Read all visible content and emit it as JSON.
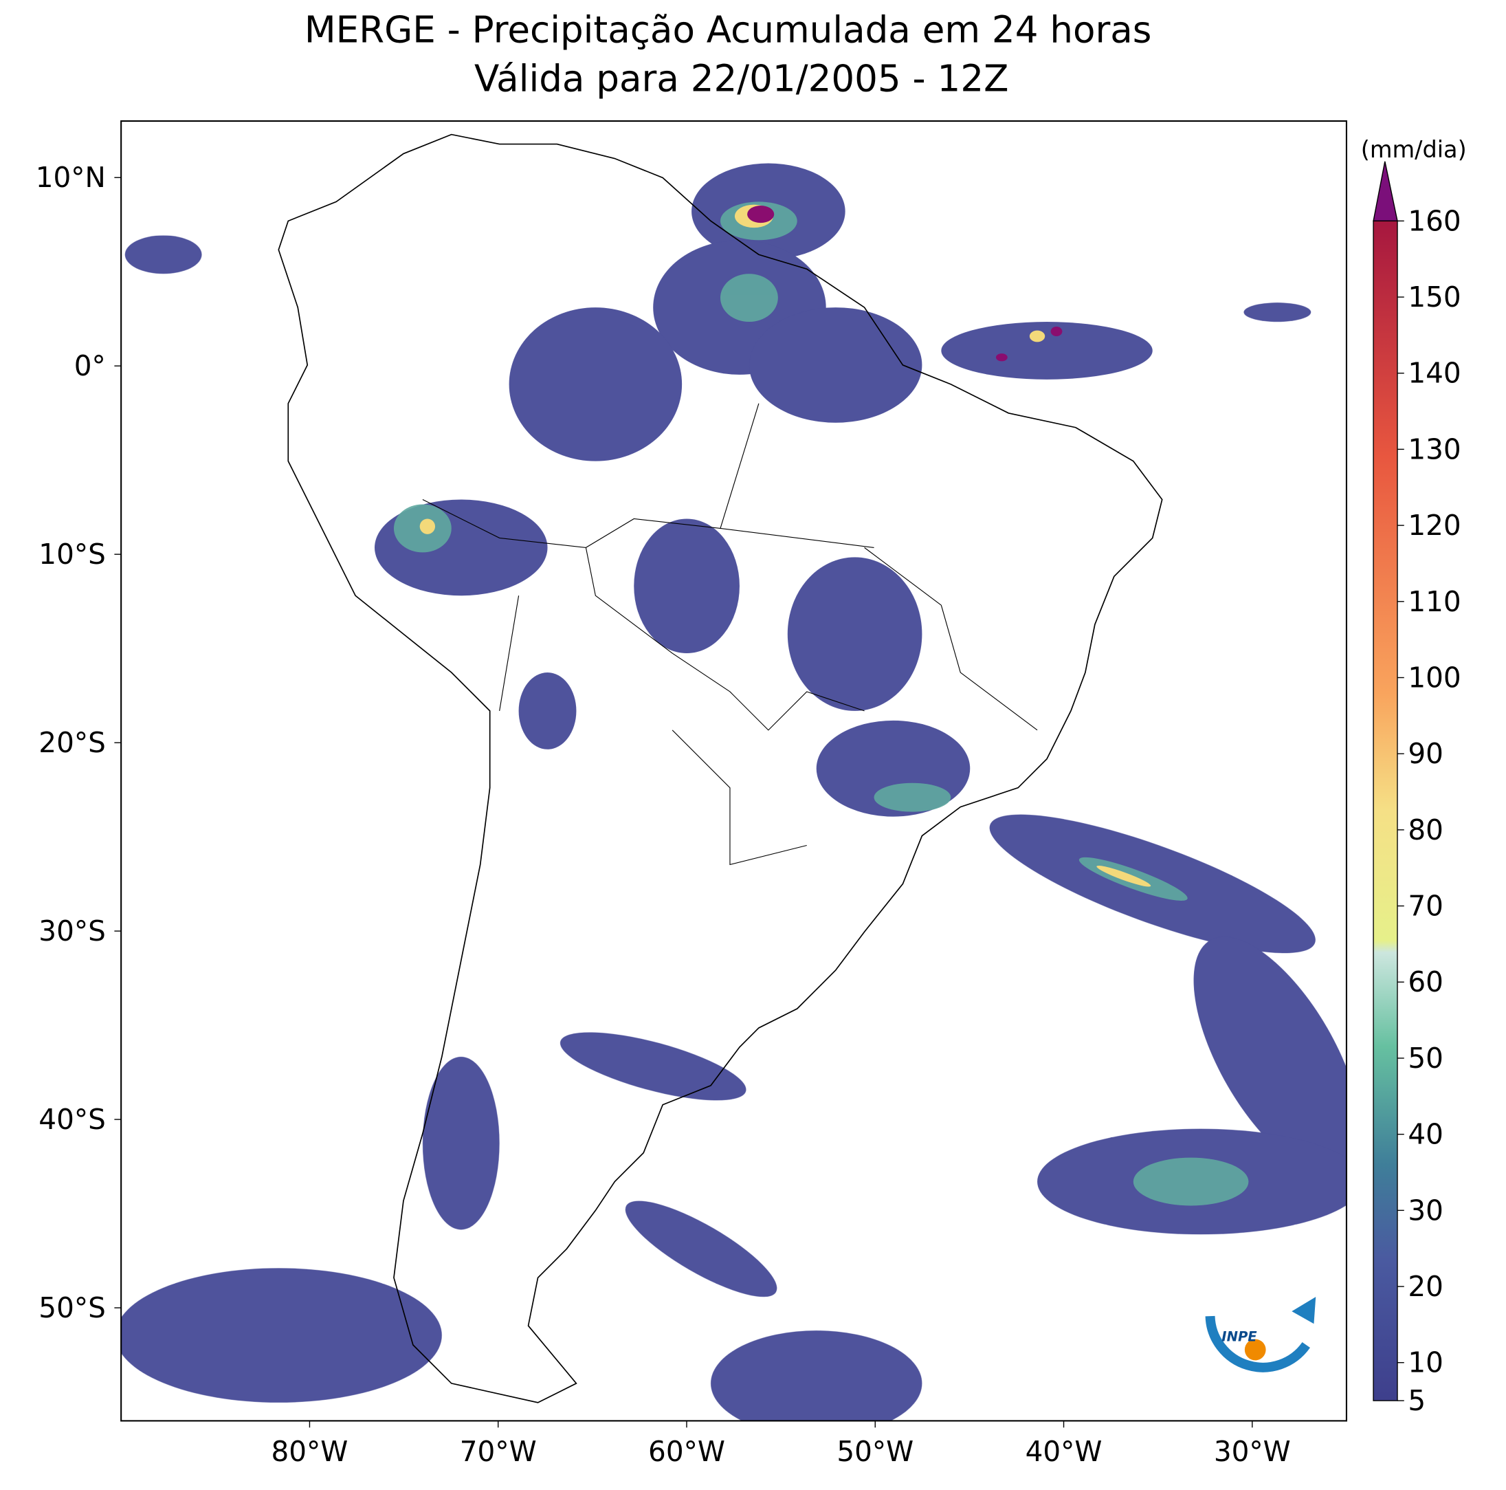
{
  "header": {
    "title": "MERGE - Precipitação Acumulada em 24 horas",
    "subtitle": "Válida para 22/01/2005 - 12Z"
  },
  "map": {
    "xlim": [
      -90,
      -25
    ],
    "ylim": [
      -56,
      13
    ],
    "xticks": [
      {
        "value": -80,
        "label": "80°W"
      },
      {
        "value": -70,
        "label": "70°W"
      },
      {
        "value": -60,
        "label": "60°W"
      },
      {
        "value": -50,
        "label": "50°W"
      },
      {
        "value": -40,
        "label": "40°W"
      },
      {
        "value": -30,
        "label": "30°W"
      }
    ],
    "yticks": [
      {
        "value": 10,
        "label": "10°N"
      },
      {
        "value": 0,
        "label": "0°"
      },
      {
        "value": -10,
        "label": "10°S"
      },
      {
        "value": -20,
        "label": "20°S"
      },
      {
        "value": -30,
        "label": "30°S"
      },
      {
        "value": -40,
        "label": "40°S"
      },
      {
        "value": -50,
        "label": "50°S"
      }
    ]
  },
  "colorbar": {
    "label": "(mm/dia)",
    "lim": [
      5,
      160
    ],
    "ticks": [
      5,
      10,
      20,
      30,
      40,
      50,
      60,
      70,
      80,
      90,
      100,
      110,
      120,
      130,
      140,
      150,
      160
    ]
  },
  "logo": "INPE"
}
